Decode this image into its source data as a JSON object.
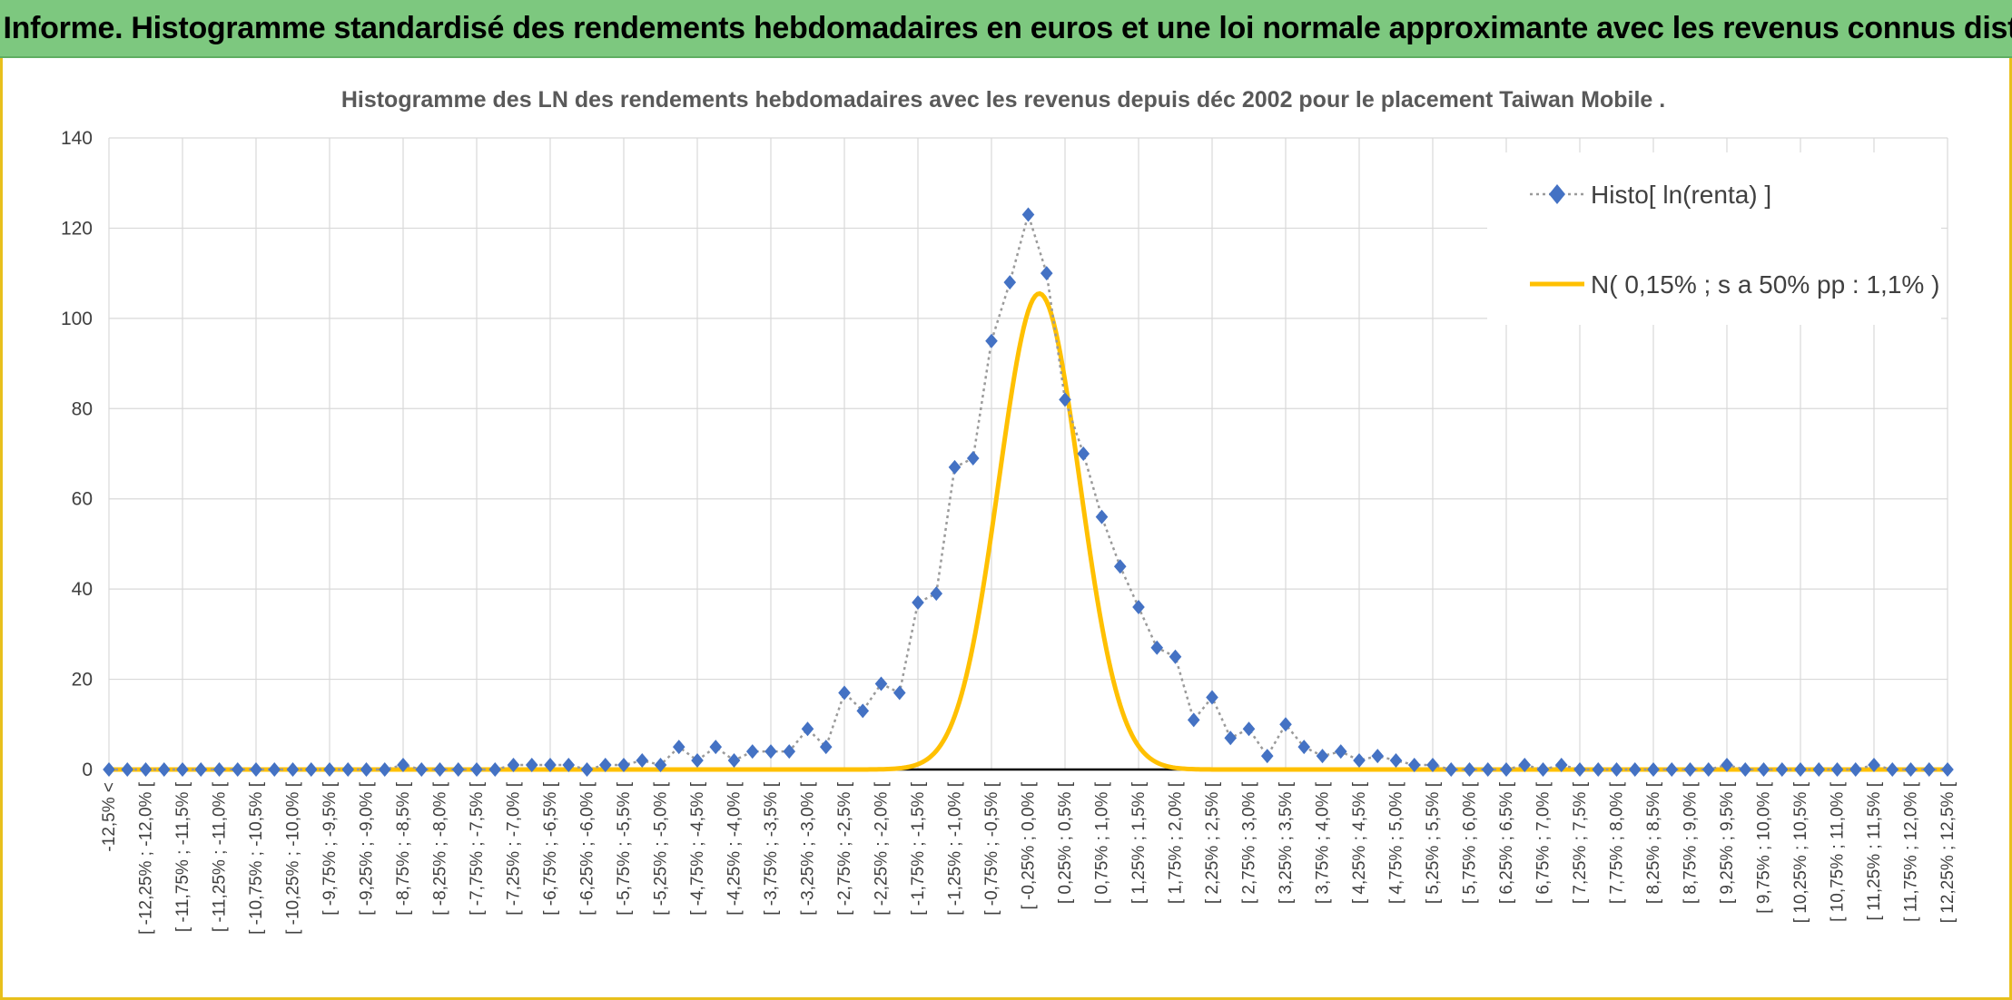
{
  "banner": {
    "title": "ADAM Informe. Histogramme standardisé des rendements hebdomadaires en euros et une loi normale approximante avec les revenus connus distribués"
  },
  "colors": {
    "banner_bg": "#7dc87f",
    "frame": "#e8c01c",
    "histo": "#4472c4",
    "normal": "#ffc000"
  },
  "chart_data": {
    "type": "line",
    "title": "Histogramme des LN des rendements hebdomadaires avec les revenus depuis déc 2002 pour le placement Taiwan Mobile .",
    "ylim": [
      0,
      140
    ],
    "yticks": [
      0,
      20,
      40,
      60,
      80,
      100,
      120,
      140
    ],
    "grid": true,
    "legend_position": "top-right",
    "categories": [
      "-12,5% <",
      "[ -12,25% ; -12,0% [",
      "[ -11,75% ; -11,5% [",
      "[ -11,25% ; -11,0% [",
      "[ -10,75% ; -10,5% [",
      "[ -10,25% ; -10,0% [",
      "[ -9,75% ; -9,5% [",
      "[ -9,25% ; -9,0% [",
      "[ -8,75% ; -8,5% [",
      "[ -8,25% ; -8,0% [",
      "[ -7,75% ; -7,5% [",
      "[ -7,25% ; -7,0% [",
      "[ -6,75% ; -6,5% [",
      "[ -6,25% ; -6,0% [",
      "[ -5,75% ; -5,5% [",
      "[ -5,25% ; -5,0% [",
      "[ -4,75% ; -4,5% [",
      "[ -4,25% ; -4,0% [",
      "[ -3,75% ; -3,5% [",
      "[ -3,25% ; -3,0% [",
      "[ -2,75% ; -2,5% [",
      "[ -2,25% ; -2,0% [",
      "[ -1,75% ; -1,5% [",
      "[ -1,25% ; -1,0% [",
      "[ -0,75% ; -0,5% [",
      "[ -0,25% ; 0,0% [",
      "[ 0,25% ; 0,5% [",
      "[ 0,75% ; 1,0% [",
      "[ 1,25% ; 1,5% [",
      "[ 1,75% ; 2,0% [",
      "[ 2,25% ; 2,5% [",
      "[ 2,75% ; 3,0% [",
      "[ 3,25% ; 3,5% [",
      "[ 3,75% ; 4,0% [",
      "[ 4,25% ; 4,5% [",
      "[ 4,75% ; 5,0% [",
      "[ 5,25% ; 5,5% [",
      "[ 5,75% ; 6,0% [",
      "[ 6,25% ; 6,5% [",
      "[ 6,75% ; 7,0% [",
      "[ 7,25% ; 7,5% [",
      "[ 7,75% ; 8,0% [",
      "[ 8,25% ; 8,5% [",
      "[ 8,75% ; 9,0% [",
      "[ 9,25% ; 9,5% [",
      "[ 9,75% ; 10,0% [",
      "[ 10,25% ; 10,5% [",
      "[ 10,75% ; 11,0% [",
      "[ 11,25% ; 11,5% [",
      "[ 11,75% ; 12,0% [",
      "[ 12,25% ; 12,5% ["
    ],
    "x_range": [
      -12.5,
      12.5
    ],
    "series": [
      {
        "name": "Histo[ ln(renta) ]",
        "color": "#4472c4",
        "style": "dotted-line-diamond-markers",
        "x": [
          -12.5,
          -12.25,
          -12,
          -11.75,
          -11.5,
          -11.25,
          -11,
          -10.75,
          -10.5,
          -10.25,
          -10,
          -9.75,
          -9.5,
          -9.25,
          -9,
          -8.75,
          -8.5,
          -8.25,
          -8,
          -7.75,
          -7.5,
          -7.25,
          -7,
          -6.75,
          -6.5,
          -6.25,
          -6,
          -5.75,
          -5.5,
          -5.25,
          -5,
          -4.75,
          -4.5,
          -4.25,
          -4,
          -3.75,
          -3.5,
          -3.25,
          -3,
          -2.75,
          -2.5,
          -2.25,
          -2,
          -1.75,
          -1.5,
          -1.25,
          -1,
          -0.75,
          -0.5,
          -0.25,
          0,
          0.25,
          0.5,
          0.75,
          1,
          1.25,
          1.5,
          1.75,
          2,
          2.25,
          2.5,
          2.75,
          3,
          3.25,
          3.5,
          3.75,
          4,
          4.25,
          4.5,
          4.75,
          5,
          5.25,
          5.5,
          5.75,
          6,
          6.25,
          6.5,
          6.75,
          7,
          7.25,
          7.5,
          7.75,
          8,
          8.25,
          8.5,
          8.75,
          9,
          9.25,
          9.5,
          9.75,
          10,
          10.25,
          10.5,
          10.75,
          11,
          11.25,
          11.5,
          11.75,
          12,
          12.25,
          12.5
        ],
        "values": [
          0,
          0,
          0,
          0,
          0,
          0,
          0,
          0,
          0,
          0,
          0,
          0,
          0,
          0,
          0,
          0,
          1,
          0,
          0,
          0,
          0,
          0,
          1,
          1,
          1,
          1,
          0,
          1,
          1,
          2,
          1,
          5,
          2,
          5,
          2,
          4,
          4,
          4,
          9,
          5,
          17,
          13,
          19,
          17,
          37,
          39,
          67,
          69,
          95,
          108,
          123,
          110,
          82,
          70,
          56,
          45,
          36,
          27,
          25,
          11,
          16,
          7,
          9,
          3,
          10,
          5,
          3,
          4,
          2,
          3,
          2,
          1,
          1,
          0,
          0,
          0,
          0,
          1,
          0,
          1,
          0,
          0,
          0,
          0,
          0,
          0,
          0,
          0,
          1,
          0,
          0,
          0,
          0,
          0,
          0,
          0,
          1,
          0,
          0,
          0,
          0
        ]
      },
      {
        "name": "N( 0,15% ; s a 50% pp : 1,1% )",
        "color": "#ffc000",
        "style": "solid-line",
        "mean": 0.15,
        "sd": 0.55,
        "peak": 105.5
      }
    ]
  }
}
